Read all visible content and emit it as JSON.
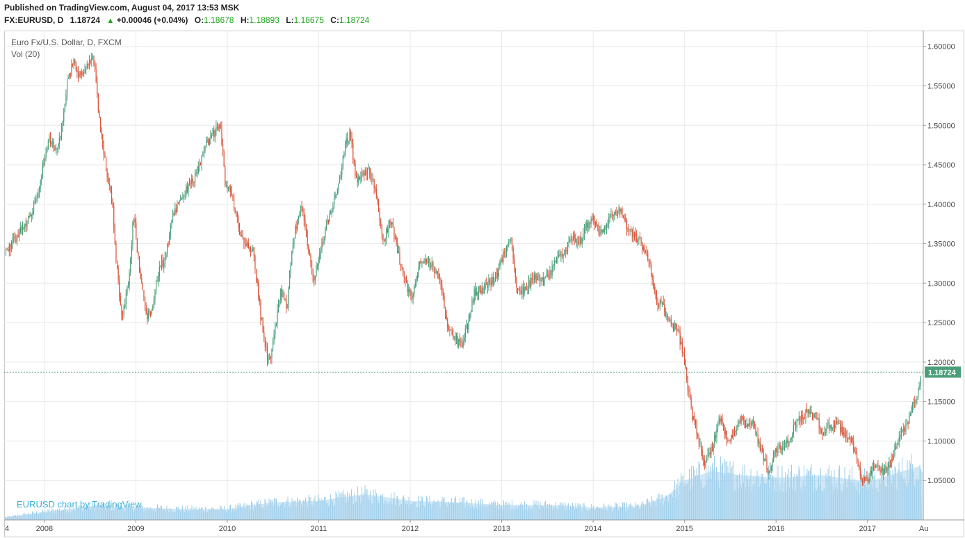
{
  "header": {
    "published": "Published on TradingView.com, August 04, 2017 13:53 MSK",
    "symbol": "FX:EURUSD, D",
    "last": "1.18724",
    "change": "+0.00046 (+0.04%)",
    "o_label": "O:",
    "o_value": "1.18678",
    "h_label": "H:",
    "h_value": "1.18893",
    "l_label": "L:",
    "l_value": "1.18675",
    "c_label": "C:",
    "c_value": "1.18724"
  },
  "legend": {
    "series_title": "Euro Fx/U.S. Dollar, D, FXCM",
    "volume_label": "Vol (20)"
  },
  "watermark": "EURUSD chart by TradingView",
  "last_price_tag": "1.18724",
  "colors": {
    "up": "#4a9e7a",
    "down": "#d9553a",
    "volume": "#7fbde0",
    "volume_ma": "#a8d4ee",
    "price_tag": "#4a9e7a",
    "grid": "#e8e8e8"
  },
  "chart_data": {
    "type": "candlestick",
    "title": "Euro Fx/U.S. Dollar, D, FXCM",
    "ylim": [
      1.0,
      1.62
    ],
    "y_ticks": [
      "1.05000",
      "1.10000",
      "1.15000",
      "1.20000",
      "1.25000",
      "1.30000",
      "1.35000",
      "1.40000",
      "1.45000",
      "1.50000",
      "1.55000",
      "1.60000"
    ],
    "x_ticks": [
      "2008",
      "2009",
      "2010",
      "2011",
      "2012",
      "2013",
      "2014",
      "2015",
      "2016",
      "2017",
      "Au"
    ],
    "x_tick_first": "4",
    "grid": true,
    "last_price": 1.18724,
    "price_path": [
      [
        2007.58,
        1.34
      ],
      [
        2007.7,
        1.36
      ],
      [
        2007.82,
        1.38
      ],
      [
        2007.92,
        1.41
      ],
      [
        2007.98,
        1.45
      ],
      [
        2008.05,
        1.48
      ],
      [
        2008.12,
        1.47
      ],
      [
        2008.18,
        1.49
      ],
      [
        2008.25,
        1.56
      ],
      [
        2008.32,
        1.58
      ],
      [
        2008.38,
        1.56
      ],
      [
        2008.45,
        1.57
      ],
      [
        2008.53,
        1.59
      ],
      [
        2008.6,
        1.5
      ],
      [
        2008.68,
        1.44
      ],
      [
        2008.74,
        1.4
      ],
      [
        2008.78,
        1.33
      ],
      [
        2008.84,
        1.26
      ],
      [
        2008.92,
        1.3
      ],
      [
        2008.97,
        1.39
      ],
      [
        2009.05,
        1.3
      ],
      [
        2009.12,
        1.26
      ],
      [
        2009.18,
        1.27
      ],
      [
        2009.25,
        1.32
      ],
      [
        2009.32,
        1.33
      ],
      [
        2009.4,
        1.39
      ],
      [
        2009.48,
        1.4
      ],
      [
        2009.55,
        1.42
      ],
      [
        2009.62,
        1.43
      ],
      [
        2009.7,
        1.45
      ],
      [
        2009.78,
        1.48
      ],
      [
        2009.85,
        1.49
      ],
      [
        2009.92,
        1.5
      ],
      [
        2009.97,
        1.43
      ],
      [
        2010.05,
        1.41
      ],
      [
        2010.12,
        1.37
      ],
      [
        2010.2,
        1.35
      ],
      [
        2010.28,
        1.34
      ],
      [
        2010.36,
        1.26
      ],
      [
        2010.43,
        1.21
      ],
      [
        2010.46,
        1.2
      ],
      [
        2010.5,
        1.23
      ],
      [
        2010.58,
        1.29
      ],
      [
        2010.65,
        1.27
      ],
      [
        2010.72,
        1.36
      ],
      [
        2010.8,
        1.4
      ],
      [
        2010.86,
        1.36
      ],
      [
        2010.94,
        1.3
      ],
      [
        2011.0,
        1.34
      ],
      [
        2011.08,
        1.37
      ],
      [
        2011.15,
        1.4
      ],
      [
        2011.22,
        1.43
      ],
      [
        2011.3,
        1.48
      ],
      [
        2011.34,
        1.49
      ],
      [
        2011.4,
        1.43
      ],
      [
        2011.48,
        1.44
      ],
      [
        2011.55,
        1.44
      ],
      [
        2011.62,
        1.42
      ],
      [
        2011.7,
        1.35
      ],
      [
        2011.78,
        1.38
      ],
      [
        2011.86,
        1.34
      ],
      [
        2011.94,
        1.3
      ],
      [
        2012.02,
        1.28
      ],
      [
        2012.1,
        1.33
      ],
      [
        2012.18,
        1.33
      ],
      [
        2012.25,
        1.32
      ],
      [
        2012.32,
        1.3
      ],
      [
        2012.4,
        1.25
      ],
      [
        2012.48,
        1.23
      ],
      [
        2012.56,
        1.22
      ],
      [
        2012.63,
        1.25
      ],
      [
        2012.7,
        1.29
      ],
      [
        2012.78,
        1.29
      ],
      [
        2012.86,
        1.3
      ],
      [
        2012.94,
        1.31
      ],
      [
        2013.03,
        1.34
      ],
      [
        2013.09,
        1.36
      ],
      [
        2013.15,
        1.3
      ],
      [
        2013.22,
        1.29
      ],
      [
        2013.3,
        1.3
      ],
      [
        2013.38,
        1.31
      ],
      [
        2013.45,
        1.3
      ],
      [
        2013.52,
        1.31
      ],
      [
        2013.6,
        1.33
      ],
      [
        2013.68,
        1.34
      ],
      [
        2013.76,
        1.36
      ],
      [
        2013.84,
        1.35
      ],
      [
        2013.92,
        1.37
      ],
      [
        2014.0,
        1.38
      ],
      [
        2014.08,
        1.36
      ],
      [
        2014.16,
        1.38
      ],
      [
        2014.24,
        1.39
      ],
      [
        2014.3,
        1.39
      ],
      [
        2014.36,
        1.37
      ],
      [
        2014.44,
        1.36
      ],
      [
        2014.52,
        1.35
      ],
      [
        2014.6,
        1.33
      ],
      [
        2014.68,
        1.28
      ],
      [
        2014.76,
        1.27
      ],
      [
        2014.84,
        1.25
      ],
      [
        2014.92,
        1.24
      ],
      [
        2014.98,
        1.21
      ],
      [
        2015.03,
        1.17
      ],
      [
        2015.08,
        1.13
      ],
      [
        2015.14,
        1.11
      ],
      [
        2015.2,
        1.07
      ],
      [
        2015.26,
        1.08
      ],
      [
        2015.32,
        1.1
      ],
      [
        2015.38,
        1.13
      ],
      [
        2015.44,
        1.11
      ],
      [
        2015.5,
        1.1
      ],
      [
        2015.56,
        1.12
      ],
      [
        2015.62,
        1.13
      ],
      [
        2015.68,
        1.12
      ],
      [
        2015.74,
        1.12
      ],
      [
        2015.8,
        1.1
      ],
      [
        2015.86,
        1.08
      ],
      [
        2015.92,
        1.06
      ],
      [
        2015.98,
        1.09
      ],
      [
        2016.06,
        1.09
      ],
      [
        2016.14,
        1.1
      ],
      [
        2016.2,
        1.12
      ],
      [
        2016.28,
        1.13
      ],
      [
        2016.36,
        1.14
      ],
      [
        2016.44,
        1.13
      ],
      [
        2016.5,
        1.11
      ],
      [
        2016.58,
        1.12
      ],
      [
        2016.66,
        1.12
      ],
      [
        2016.74,
        1.11
      ],
      [
        2016.82,
        1.1
      ],
      [
        2016.88,
        1.08
      ],
      [
        2016.94,
        1.05
      ],
      [
        2017.0,
        1.05
      ],
      [
        2017.08,
        1.07
      ],
      [
        2017.16,
        1.06
      ],
      [
        2017.24,
        1.07
      ],
      [
        2017.3,
        1.09
      ],
      [
        2017.36,
        1.11
      ],
      [
        2017.42,
        1.12
      ],
      [
        2017.48,
        1.14
      ],
      [
        2017.54,
        1.16
      ],
      [
        2017.59,
        1.18724
      ]
    ],
    "volume_path": [
      [
        2007.58,
        0.02
      ],
      [
        2008.0,
        0.06
      ],
      [
        2008.5,
        0.1
      ],
      [
        2009.0,
        0.09
      ],
      [
        2009.5,
        0.08
      ],
      [
        2010.0,
        0.08
      ],
      [
        2010.5,
        0.13
      ],
      [
        2011.0,
        0.14
      ],
      [
        2011.5,
        0.19
      ],
      [
        2012.0,
        0.14
      ],
      [
        2012.5,
        0.13
      ],
      [
        2013.0,
        0.11
      ],
      [
        2013.5,
        0.11
      ],
      [
        2014.0,
        0.09
      ],
      [
        2014.5,
        0.1
      ],
      [
        2014.8,
        0.17
      ],
      [
        2015.0,
        0.29
      ],
      [
        2015.3,
        0.36
      ],
      [
        2015.6,
        0.33
      ],
      [
        2016.0,
        0.31
      ],
      [
        2016.5,
        0.33
      ],
      [
        2017.0,
        0.28
      ],
      [
        2017.3,
        0.34
      ],
      [
        2017.59,
        0.4
      ]
    ]
  }
}
